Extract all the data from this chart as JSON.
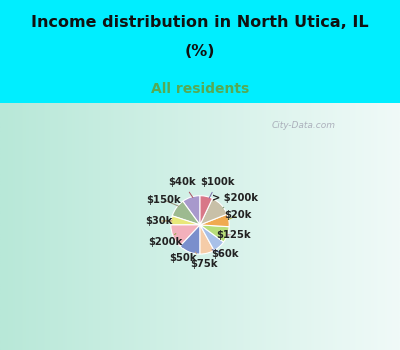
{
  "title_line1": "Income distribution in North Utica, IL",
  "title_line2": "(%)",
  "subtitle": "All residents",
  "title_color": "#111111",
  "subtitle_color": "#55aa55",
  "bg_cyan": "#00eeff",
  "watermark": "© City-Data.com",
  "labels": [
    "$100k",
    "> $200k",
    "$20k",
    "$125k",
    "$60k",
    "$75k",
    "$50k",
    "$200k",
    "$30k",
    "$150k",
    "$40k"
  ],
  "values": [
    10,
    10,
    5,
    13,
    12,
    8,
    7,
    9,
    7,
    12,
    7
  ],
  "colors": [
    "#a899cc",
    "#9dba90",
    "#e8e87a",
    "#f2b0bb",
    "#7a8fcc",
    "#f5cca8",
    "#a8c0e8",
    "#b8dd7a",
    "#f0aa50",
    "#c8c0a8",
    "#d87888"
  ],
  "label_colors": [
    "#7a6aaa",
    "#7a9a70",
    "#b8b840",
    "#cc8090",
    "#5060aa",
    "#c8a080",
    "#7090c0",
    "#88aa40",
    "#c08030",
    "#989078",
    "#aa5060"
  ]
}
